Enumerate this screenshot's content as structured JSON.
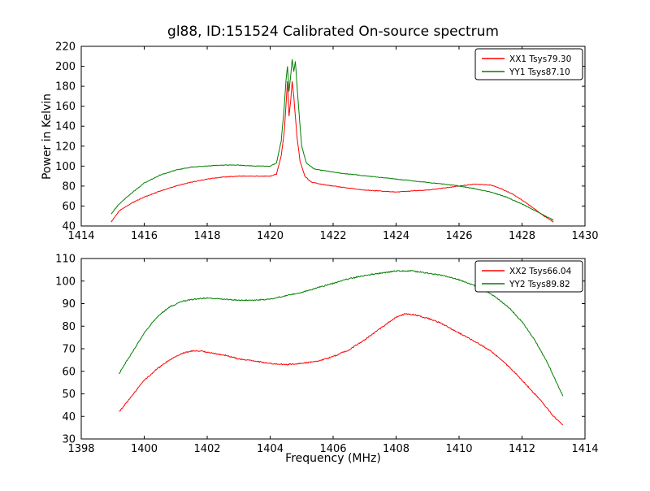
{
  "chart_data": [
    {
      "type": "line",
      "title": "gl88, ID:151524 Calibrated On-source spectrum",
      "xlabel": "",
      "ylabel": "Power in Kelvin",
      "xlim": [
        1414,
        1430
      ],
      "ylim": [
        40,
        220
      ],
      "xticks": [
        1414,
        1416,
        1418,
        1420,
        1422,
        1424,
        1426,
        1428,
        1430
      ],
      "yticks": [
        40,
        60,
        80,
        100,
        120,
        140,
        160,
        180,
        200,
        220
      ],
      "grid": false,
      "legend_position": "upper right",
      "series": [
        {
          "name": "XX1 Tsys79.30",
          "color": "#ff0000",
          "points": [
            [
              1414.95,
              44
            ],
            [
              1415.2,
              55
            ],
            [
              1415.6,
              63
            ],
            [
              1416.0,
              69
            ],
            [
              1416.5,
              75
            ],
            [
              1417.0,
              80
            ],
            [
              1417.5,
              84
            ],
            [
              1418.0,
              87
            ],
            [
              1418.5,
              89
            ],
            [
              1419.0,
              90
            ],
            [
              1419.5,
              90
            ],
            [
              1420.0,
              90
            ],
            [
              1420.2,
              92
            ],
            [
              1420.35,
              110
            ],
            [
              1420.45,
              135
            ],
            [
              1420.5,
              160
            ],
            [
              1420.55,
              185
            ],
            [
              1420.6,
              150
            ],
            [
              1420.65,
              165
            ],
            [
              1420.7,
              185
            ],
            [
              1420.75,
              170
            ],
            [
              1420.85,
              130
            ],
            [
              1420.95,
              105
            ],
            [
              1421.1,
              90
            ],
            [
              1421.3,
              84
            ],
            [
              1421.6,
              82
            ],
            [
              1422.0,
              80
            ],
            [
              1422.5,
              78
            ],
            [
              1423.0,
              76
            ],
            [
              1423.5,
              75
            ],
            [
              1424.0,
              74
            ],
            [
              1424.5,
              75
            ],
            [
              1425.0,
              76
            ],
            [
              1425.5,
              78
            ],
            [
              1426.0,
              80
            ],
            [
              1426.5,
              82
            ],
            [
              1427.0,
              81
            ],
            [
              1427.3,
              78
            ],
            [
              1427.7,
              72
            ],
            [
              1428.0,
              66
            ],
            [
              1428.4,
              57
            ],
            [
              1428.7,
              50
            ],
            [
              1429.0,
              44
            ]
          ]
        },
        {
          "name": "YY1 Tsys87.10",
          "color": "#008000",
          "points": [
            [
              1414.95,
              52
            ],
            [
              1415.2,
              62
            ],
            [
              1415.6,
              73
            ],
            [
              1416.0,
              83
            ],
            [
              1416.5,
              91
            ],
            [
              1417.0,
              96
            ],
            [
              1417.5,
              99
            ],
            [
              1418.0,
              100
            ],
            [
              1418.5,
              101
            ],
            [
              1419.0,
              101
            ],
            [
              1419.5,
              100
            ],
            [
              1420.0,
              100
            ],
            [
              1420.2,
              103
            ],
            [
              1420.35,
              125
            ],
            [
              1420.45,
              160
            ],
            [
              1420.5,
              185
            ],
            [
              1420.55,
              200
            ],
            [
              1420.6,
              175
            ],
            [
              1420.65,
              190
            ],
            [
              1420.7,
              207
            ],
            [
              1420.75,
              195
            ],
            [
              1420.8,
              205
            ],
            [
              1420.9,
              160
            ],
            [
              1421.0,
              120
            ],
            [
              1421.15,
              103
            ],
            [
              1421.4,
              97
            ],
            [
              1421.8,
              95
            ],
            [
              1422.2,
              93
            ],
            [
              1422.8,
              91
            ],
            [
              1423.4,
              89
            ],
            [
              1424.0,
              87
            ],
            [
              1424.6,
              85
            ],
            [
              1425.2,
              83
            ],
            [
              1425.8,
              81
            ],
            [
              1426.4,
              78
            ],
            [
              1427.0,
              74
            ],
            [
              1427.5,
              69
            ],
            [
              1428.0,
              62
            ],
            [
              1428.5,
              54
            ],
            [
              1428.8,
              49
            ],
            [
              1429.0,
              46
            ]
          ]
        }
      ]
    },
    {
      "type": "line",
      "title": "",
      "xlabel": "Frequency (MHz)",
      "ylabel": "",
      "xlim": [
        1398,
        1414
      ],
      "ylim": [
        30,
        110
      ],
      "xticks": [
        1398,
        1400,
        1402,
        1404,
        1406,
        1408,
        1410,
        1412,
        1414
      ],
      "yticks": [
        30,
        40,
        50,
        60,
        70,
        80,
        90,
        100,
        110
      ],
      "grid": false,
      "legend_position": "upper right",
      "series": [
        {
          "name": "XX2 Tsys66.04",
          "color": "#ff0000",
          "points": [
            [
              1399.2,
              42
            ],
            [
              1399.6,
              49
            ],
            [
              1400.0,
              56
            ],
            [
              1400.4,
              61
            ],
            [
              1400.8,
              65
            ],
            [
              1401.2,
              68
            ],
            [
              1401.5,
              69
            ],
            [
              1401.8,
              69
            ],
            [
              1402.2,
              68
            ],
            [
              1402.6,
              67
            ],
            [
              1403.0,
              65.5
            ],
            [
              1403.5,
              64.5
            ],
            [
              1404.0,
              63.5
            ],
            [
              1404.5,
              63
            ],
            [
              1405.0,
              63.5
            ],
            [
              1405.5,
              64.5
            ],
            [
              1406.0,
              66.5
            ],
            [
              1406.5,
              69.5
            ],
            [
              1407.0,
              74
            ],
            [
              1407.5,
              79
            ],
            [
              1408.0,
              84
            ],
            [
              1408.3,
              85.5
            ],
            [
              1408.6,
              85
            ],
            [
              1409.0,
              83.5
            ],
            [
              1409.4,
              81.5
            ],
            [
              1409.8,
              78.5
            ],
            [
              1410.2,
              75.5
            ],
            [
              1410.6,
              72.5
            ],
            [
              1411.0,
              69
            ],
            [
              1411.4,
              64.5
            ],
            [
              1411.8,
              59
            ],
            [
              1412.2,
              53
            ],
            [
              1412.6,
              47
            ],
            [
              1413.0,
              40
            ],
            [
              1413.3,
              36
            ]
          ]
        },
        {
          "name": "YY2 Tsys89.82",
          "color": "#008000",
          "points": [
            [
              1399.2,
              59
            ],
            [
              1399.6,
              68
            ],
            [
              1400.0,
              77
            ],
            [
              1400.4,
              84
            ],
            [
              1400.8,
              88.5
            ],
            [
              1401.2,
              91
            ],
            [
              1401.6,
              92
            ],
            [
              1402.0,
              92.5
            ],
            [
              1402.5,
              92
            ],
            [
              1403.0,
              91.5
            ],
            [
              1403.5,
              91.5
            ],
            [
              1404.0,
              92
            ],
            [
              1404.5,
              93.5
            ],
            [
              1405.0,
              95
            ],
            [
              1405.5,
              97
            ],
            [
              1406.0,
              99
            ],
            [
              1406.5,
              101
            ],
            [
              1407.0,
              102.5
            ],
            [
              1407.5,
              103.5
            ],
            [
              1408.0,
              104.5
            ],
            [
              1408.5,
              104.5
            ],
            [
              1409.0,
              103.5
            ],
            [
              1409.5,
              102.5
            ],
            [
              1410.0,
              100.5
            ],
            [
              1410.4,
              98.5
            ],
            [
              1410.8,
              96
            ],
            [
              1411.2,
              92.5
            ],
            [
              1411.6,
              88
            ],
            [
              1412.0,
              82
            ],
            [
              1412.4,
              74
            ],
            [
              1412.8,
              64
            ],
            [
              1413.1,
              55
            ],
            [
              1413.3,
              49
            ]
          ]
        }
      ]
    }
  ]
}
